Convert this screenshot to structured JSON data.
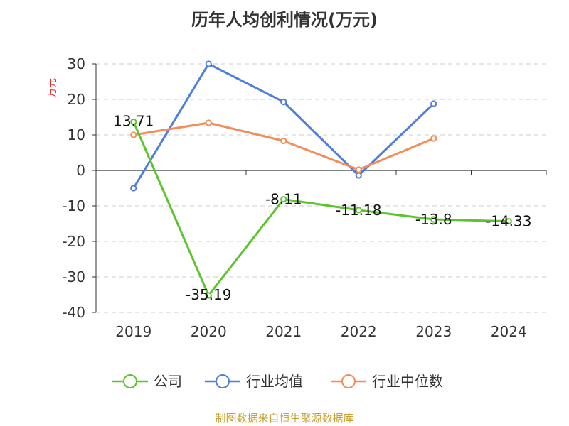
{
  "chart_data": {
    "type": "line",
    "title": "历年人均创利情况(万元)",
    "ylabel": "万元",
    "xlabel": "",
    "categories": [
      "2019",
      "2020",
      "2021",
      "2022",
      "2023",
      "2024"
    ],
    "ylim": [
      -40,
      30
    ],
    "yticks": [
      30,
      20,
      10,
      0,
      -10,
      -20,
      -30,
      -40
    ],
    "grid": true,
    "legend_position": "bottom",
    "series": [
      {
        "name": "公司",
        "color": "#5cc42e",
        "values": [
          13.71,
          -35.19,
          -8.11,
          -11.18,
          -13.8,
          -14.33
        ],
        "labels": [
          "13.71",
          "-35.19",
          "-8.11",
          "-11.18",
          "-13.8",
          "-14.33"
        ]
      },
      {
        "name": "行业均值",
        "color": "#4f7fdc",
        "values": [
          -5.0,
          30.0,
          19.3,
          -1.4,
          18.8,
          null
        ]
      },
      {
        "name": "行业中位数",
        "color": "#f28c5a",
        "values": [
          10.0,
          13.4,
          8.3,
          0.2,
          9.0,
          null
        ]
      }
    ]
  },
  "source": "制图数据来自恒生聚源数据库"
}
